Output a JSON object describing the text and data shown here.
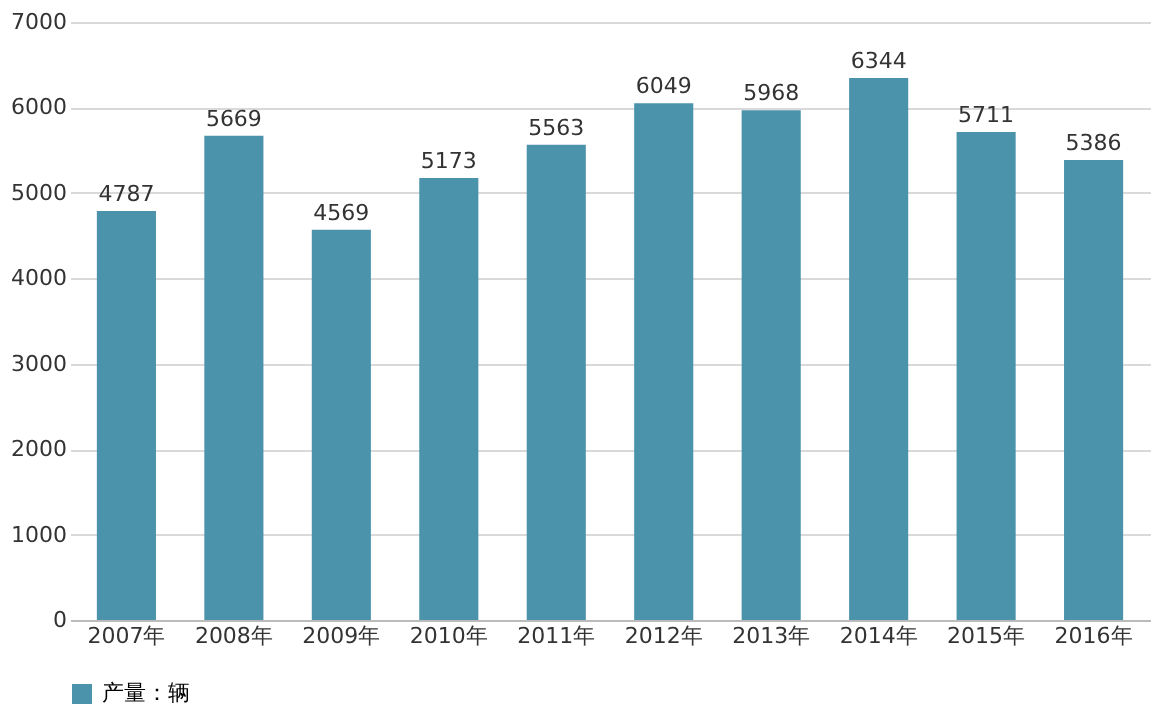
{
  "chart_data": {
    "type": "bar",
    "categories": [
      "2007年",
      "2008年",
      "2009年",
      "2010年",
      "2011年",
      "2012年",
      "2013年",
      "2014年",
      "2015年",
      "2016年"
    ],
    "series": [
      {
        "name": "产量：辆",
        "color": "#4b93ab",
        "values": [
          4787,
          5669,
          4569,
          5173,
          5563,
          6049,
          5968,
          6344,
          5711,
          5386
        ]
      }
    ],
    "ylim": [
      0,
      7000
    ],
    "yticks": [
      0,
      1000,
      2000,
      3000,
      4000,
      5000,
      6000,
      7000
    ],
    "grid": "y",
    "legend": "bottom",
    "data_labels": true
  }
}
